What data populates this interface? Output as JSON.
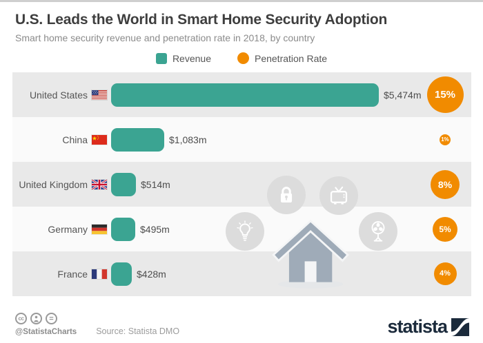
{
  "title": "U.S. Leads the World in Smart Home Security Adoption",
  "subtitle": "Smart home security revenue and penetration rate in 2018, by country",
  "legend": {
    "revenue_label": "Revenue",
    "penetration_label": "Penetration Rate"
  },
  "colors": {
    "revenue_teal": "#3ba492",
    "penetration_orange": "#f18b00",
    "row_shaded": "#e9e9e9",
    "row_plain": "#fafafa",
    "watermark_gray": "#dcdcdc",
    "house_gray": "#9fabb8",
    "brand_navy": "#1b2a3b"
  },
  "chart_data": {
    "type": "bar",
    "orientation": "horizontal",
    "title": "U.S. Leads the World in Smart Home Security Adoption",
    "subtitle": "Smart home security revenue and penetration rate in 2018, by country",
    "categories": [
      "United States",
      "China",
      "United Kingdom",
      "Germany",
      "France"
    ],
    "series": [
      {
        "name": "Revenue",
        "unit": "USD million",
        "values": [
          5474,
          1083,
          514,
          495,
          428
        ]
      },
      {
        "name": "Penetration Rate",
        "unit": "%",
        "values": [
          15,
          1,
          8,
          5,
          4
        ]
      }
    ],
    "value_labels": [
      "$5,474m",
      "$1,083m",
      "$514m",
      "$495m",
      "$428m"
    ],
    "penetration_labels": [
      "15%",
      "1%",
      "8%",
      "5%",
      "4%"
    ],
    "xlabel": "",
    "ylabel": "",
    "xlim": [
      0,
      5474
    ],
    "grid": false,
    "legend_position": "top"
  },
  "rows": [
    {
      "country": "United States",
      "flag": "United States flag",
      "revenue_musd": 5474,
      "value_label": "$5,474m",
      "penetration_pct": 15,
      "pct_label": "15%"
    },
    {
      "country": "China",
      "flag": "China flag",
      "revenue_musd": 1083,
      "value_label": "$1,083m",
      "penetration_pct": 1,
      "pct_label": "1%"
    },
    {
      "country": "United Kingdom",
      "flag": "United Kingdom flag",
      "revenue_musd": 514,
      "value_label": "$514m",
      "penetration_pct": 8,
      "pct_label": "8%"
    },
    {
      "country": "Germany",
      "flag": "Germany flag",
      "revenue_musd": 495,
      "value_label": "$495m",
      "penetration_pct": 5,
      "pct_label": "5%"
    },
    {
      "country": "France",
      "flag": "France flag",
      "revenue_musd": 428,
      "value_label": "$428m",
      "penetration_pct": 4,
      "pct_label": "4%"
    }
  ],
  "background_icons": [
    "padlock",
    "tv",
    "lightbulb",
    "fan",
    "house"
  ],
  "footer": {
    "license_icons": [
      "cc",
      "by",
      "nd"
    ],
    "cc_label": "cc",
    "nd_label": "=",
    "handle": "@StatistaCharts",
    "source": "Source: Statista DMO",
    "brand": "statista"
  }
}
